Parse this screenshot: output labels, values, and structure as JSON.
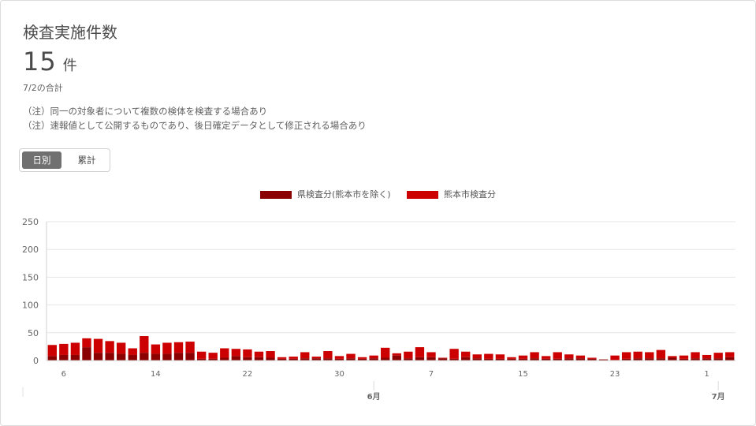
{
  "header": {
    "title": "検査実施件数",
    "total_value": "15",
    "total_unit": "件",
    "date_label": "7/2の合計",
    "notes": [
      "（注）同一の対象者について複数の検体を検査する場合あり",
      "（注）速報値として公開するものであり、後日確定データとして修正される場合あり"
    ]
  },
  "toggle": {
    "daily_label": "日別",
    "cumulative_label": "累計",
    "selected": "daily"
  },
  "colors": {
    "series_pref": "#8b0000",
    "series_city": "#cc0000",
    "grid": "#e6e6e6",
    "axis_text": "#666666"
  },
  "chart_data": {
    "type": "bar",
    "stacked": true,
    "legend": [
      "県検査分(熊本市を除く)",
      "熊本市検査分"
    ],
    "legend_position": "top-center",
    "ylim": [
      0,
      250
    ],
    "yticks": [
      0,
      50,
      100,
      150,
      200,
      250
    ],
    "grid": true,
    "x_day_ticks": [
      {
        "index": 1,
        "label": "6"
      },
      {
        "index": 9,
        "label": "14"
      },
      {
        "index": 17,
        "label": "22"
      },
      {
        "index": 25,
        "label": "30"
      },
      {
        "index": 33,
        "label": "7"
      },
      {
        "index": 41,
        "label": "15"
      },
      {
        "index": 49,
        "label": "23"
      },
      {
        "index": 57,
        "label": "1"
      }
    ],
    "x_month_ticks": [
      {
        "index": 28.5,
        "label": "6月"
      },
      {
        "index": 58.5,
        "label": "7月"
      }
    ],
    "series": [
      {
        "name": "県検査分(熊本市を除く)",
        "values": [
          8,
          10,
          10,
          24,
          14,
          14,
          12,
          10,
          14,
          12,
          12,
          14,
          14,
          3,
          3,
          5,
          8,
          6,
          6,
          5,
          3,
          3,
          4,
          4,
          4,
          3,
          4,
          3,
          4,
          5,
          9,
          4,
          6,
          6,
          4,
          3,
          6,
          4,
          3,
          3,
          3,
          3,
          4,
          3,
          3,
          4,
          4,
          3,
          2,
          1,
          3,
          4,
          4,
          4,
          5,
          3,
          4,
          4,
          4,
          6
        ]
      },
      {
        "name": "熊本市検査分",
        "values": [
          20,
          20,
          22,
          16,
          25,
          21,
          20,
          12,
          30,
          17,
          20,
          19,
          20,
          13,
          11,
          17,
          13,
          14,
          10,
          12,
          3,
          4,
          11,
          3,
          13,
          5,
          8,
          3,
          5,
          18,
          4,
          12,
          18,
          9,
          1,
          18,
          10,
          7,
          9,
          8,
          3,
          6,
          11,
          5,
          12,
          7,
          5,
          2,
          0,
          8,
          12,
          12,
          11,
          15,
          3,
          6,
          11,
          6,
          10,
          9
        ]
      }
    ]
  }
}
